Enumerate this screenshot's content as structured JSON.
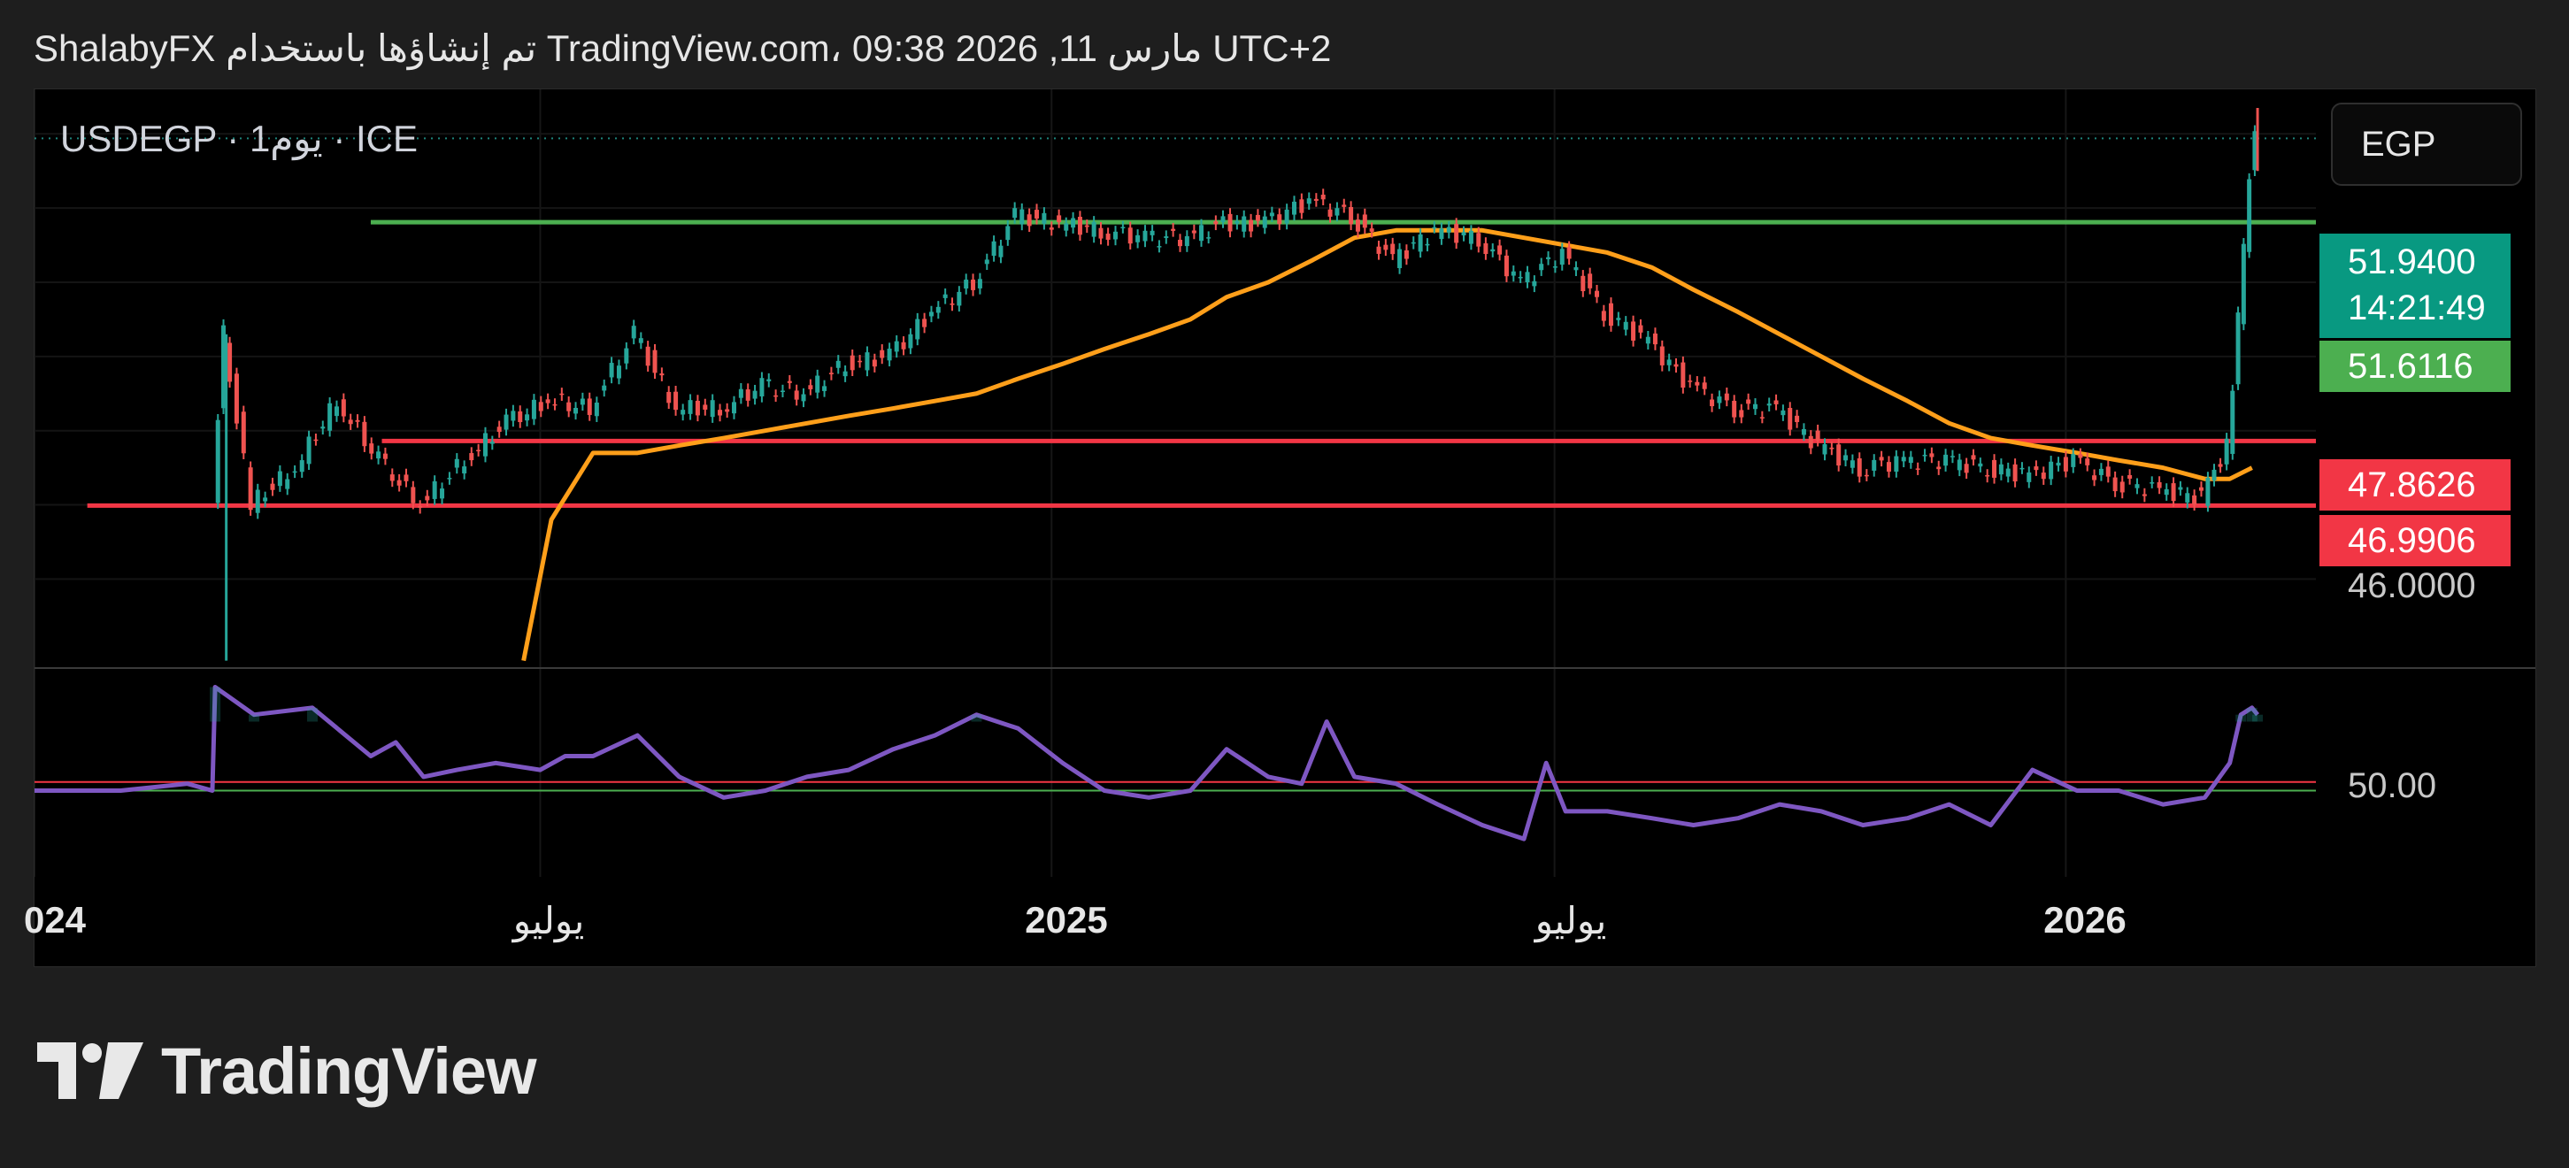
{
  "header": {
    "attribution": "ShalabyFX تم إنشاؤها باستخدام TradingView.com، 09:38 2026 ,11 مارس UTC+2"
  },
  "symbol": {
    "label": "USDEGP · 1يوم · ICE"
  },
  "currency_button": {
    "label": "EGP"
  },
  "price_scale": {
    "current_price": "51.9400",
    "countdown": "14:21:49",
    "ema_value": "51.6116",
    "level_upper": "47.8626",
    "level_lower": "46.9906",
    "tick_46": "46.0000"
  },
  "rsi_scale": {
    "tick_50": "50.00"
  },
  "time_axis": {
    "labels": [
      "024",
      "يوليو",
      "2025",
      "يوليو",
      "2026"
    ]
  },
  "brand": {
    "name": "TradingView"
  },
  "colors": {
    "background": "#000000",
    "page": "#1e1e1e",
    "up": "#26a69a",
    "down": "#ef5350",
    "ema": "#ff9f1a",
    "rsi": "#7e57c2",
    "support": "#f23645",
    "resistance": "#4caf50",
    "tag_price": "#089981",
    "tag_ema": "#4caf50",
    "tag_level": "#f23645"
  },
  "chart_data": [
    {
      "type": "line",
      "title": "USDEGP · 1يوم · ICE",
      "x_range": [
        "2024-01",
        "2026-04"
      ],
      "ylim": [
        44.8,
        52.6
      ],
      "grid": true,
      "series": [
        {
          "kind": "price",
          "x": [
            "2024-03-06",
            "2024-03-10",
            "2024-03-20",
            "2024-04-05",
            "2024-04-20",
            "2024-05-05",
            "2024-05-20",
            "2024-06-05",
            "2024-06-20",
            "2024-07-05",
            "2024-07-20",
            "2024-08-05",
            "2024-08-20",
            "2024-09-05",
            "2024-09-20",
            "2024-10-05",
            "2024-10-20",
            "2024-11-05",
            "2024-11-20",
            "2024-12-05",
            "2024-12-20",
            "2025-01-05",
            "2025-01-20",
            "2025-02-05",
            "2025-02-20",
            "2025-03-05",
            "2025-03-20",
            "2025-04-05",
            "2025-04-20",
            "2025-05-05",
            "2025-05-20",
            "2025-06-05",
            "2025-06-20",
            "2025-07-05",
            "2025-07-20",
            "2025-08-05",
            "2025-08-20",
            "2025-09-05",
            "2025-09-20",
            "2025-10-05",
            "2025-10-20",
            "2025-11-05",
            "2025-11-20",
            "2025-12-05",
            "2025-12-20",
            "2026-01-05",
            "2026-01-20",
            "2026-02-05",
            "2026-02-20",
            "2026-03-01",
            "2026-03-05",
            "2026-03-09",
            "2026-03-11"
          ],
          "values": [
            47.1,
            49.3,
            47.0,
            47.5,
            48.4,
            47.6,
            47.0,
            47.6,
            48.1,
            48.4,
            48.3,
            49.3,
            48.3,
            48.3,
            48.6,
            48.5,
            48.9,
            49.0,
            49.6,
            50.0,
            50.9,
            50.8,
            50.7,
            50.6,
            50.6,
            50.8,
            50.8,
            51.1,
            50.9,
            50.3,
            50.7,
            50.6,
            50.0,
            50.4,
            49.6,
            49.2,
            48.6,
            48.3,
            48.3,
            47.8,
            47.5,
            47.6,
            47.6,
            47.5,
            47.4,
            47.6,
            47.3,
            47.2,
            47.1,
            47.8,
            49.5,
            51.5,
            51.94
          ]
        },
        {
          "kind": "ema",
          "x": [
            "2024-06-25",
            "2024-07-05",
            "2024-07-20",
            "2024-08-05",
            "2024-08-20",
            "2024-09-05",
            "2024-09-20",
            "2024-10-05",
            "2024-10-20",
            "2024-11-05",
            "2024-11-20",
            "2024-12-05",
            "2024-12-20",
            "2025-01-05",
            "2025-01-20",
            "2025-02-05",
            "2025-02-20",
            "2025-03-05",
            "2025-03-20",
            "2025-04-05",
            "2025-04-20",
            "2025-05-05",
            "2025-05-20",
            "2025-06-05",
            "2025-06-20",
            "2025-07-05",
            "2025-07-20",
            "2025-08-05",
            "2025-08-20",
            "2025-09-05",
            "2025-09-20",
            "2025-10-05",
            "2025-10-20",
            "2025-11-05",
            "2025-11-20",
            "2025-12-05",
            "2025-12-20",
            "2026-01-05",
            "2026-01-20",
            "2026-02-05",
            "2026-02-20",
            "2026-03-01",
            "2026-03-09"
          ],
          "values": [
            44.9,
            46.8,
            47.7,
            47.7,
            47.8,
            47.9,
            48.0,
            48.1,
            48.2,
            48.3,
            48.4,
            48.5,
            48.7,
            48.9,
            49.1,
            49.3,
            49.5,
            49.8,
            50.0,
            50.3,
            50.6,
            50.7,
            50.7,
            50.7,
            50.6,
            50.5,
            50.4,
            50.2,
            49.9,
            49.6,
            49.3,
            49.0,
            48.7,
            48.4,
            48.1,
            47.9,
            47.8,
            47.7,
            47.6,
            47.5,
            47.35,
            47.35,
            47.5
          ]
        },
        {
          "kind": "level",
          "name": "resistance",
          "value": 50.81,
          "from": "2024-05-01"
        },
        {
          "kind": "level",
          "name": "support",
          "value": 47.86,
          "from": "2024-05-05"
        },
        {
          "kind": "level",
          "name": "support",
          "value": 46.99,
          "from": "2024-01-20"
        }
      ]
    },
    {
      "type": "line",
      "title": "",
      "ylim": [
        25,
        85
      ],
      "levels": [
        50,
        52.5
      ],
      "series": [
        {
          "kind": "rsi",
          "x": [
            "2024-01-01",
            "2024-02-01",
            "2024-02-25",
            "2024-03-05",
            "2024-03-06",
            "2024-03-20",
            "2024-04-10",
            "2024-05-01",
            "2024-05-10",
            "2024-05-20",
            "2024-06-01",
            "2024-06-15",
            "2024-07-01",
            "2024-07-10",
            "2024-07-20",
            "2024-08-05",
            "2024-08-20",
            "2024-09-05",
            "2024-09-20",
            "2024-10-05",
            "2024-10-20",
            "2024-11-05",
            "2024-11-20",
            "2024-12-05",
            "2024-12-20",
            "2025-01-05",
            "2025-01-20",
            "2025-02-05",
            "2025-02-20",
            "2025-03-05",
            "2025-03-20",
            "2025-04-01",
            "2025-04-10",
            "2025-04-20",
            "2025-05-05",
            "2025-05-20",
            "2025-06-05",
            "2025-06-20",
            "2025-06-28",
            "2025-07-05",
            "2025-07-20",
            "2025-08-05",
            "2025-08-20",
            "2025-09-05",
            "2025-09-20",
            "2025-10-05",
            "2025-10-20",
            "2025-11-05",
            "2025-11-20",
            "2025-12-05",
            "2025-12-20",
            "2026-01-05",
            "2026-01-20",
            "2026-02-05",
            "2026-02-20",
            "2026-03-01",
            "2026-03-05",
            "2026-03-09",
            "2026-03-11"
          ],
          "values": [
            50,
            50,
            52,
            50,
            80,
            72,
            74,
            60,
            64,
            54,
            56,
            58,
            56,
            60,
            60,
            66,
            54,
            48,
            50,
            54,
            56,
            62,
            66,
            72,
            68,
            58,
            50,
            48,
            50,
            62,
            54,
            52,
            70,
            54,
            52,
            46,
            40,
            36,
            58,
            44,
            44,
            42,
            40,
            42,
            46,
            44,
            40,
            42,
            46,
            40,
            56,
            50,
            50,
            46,
            48,
            58,
            72,
            74,
            72
          ]
        }
      ]
    }
  ]
}
